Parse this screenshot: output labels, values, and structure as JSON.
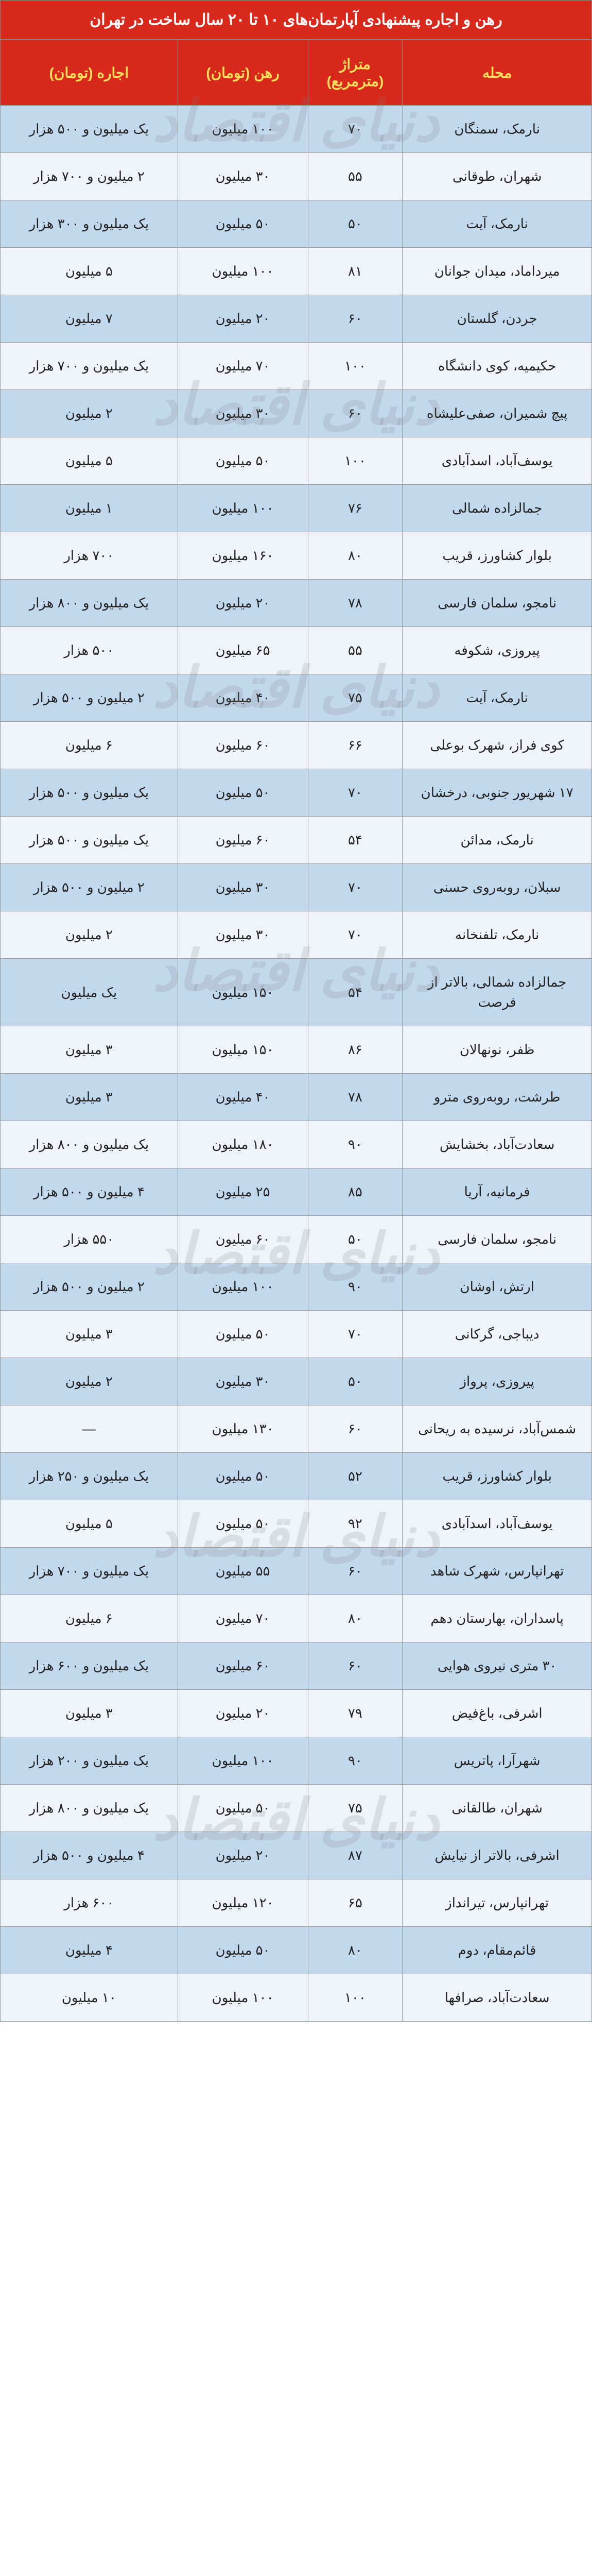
{
  "title": "رهن و اجاره پیشنهادی آپارتمان‌های ۱۰ تا ۲۰ سال ساخت در تهران",
  "columns": {
    "neighborhood": "محله",
    "area": "متراژ (مترمربع)",
    "deposit": "رهن (تومان)",
    "rent": "اجاره (تومان)"
  },
  "watermark_text": "دنیای اقتصاد",
  "watermark_positions_pct": [
    6,
    20,
    34,
    48,
    62,
    76,
    90
  ],
  "colors": {
    "header_bg": "#d9291c",
    "header_title_text": "#ffffff",
    "header_col_text": "#fde05a",
    "row_odd": "#c2d8ed",
    "row_even": "#eef4fa",
    "border": "#999999",
    "body_text": "#222222"
  },
  "rows": [
    {
      "neighborhood": "نارمک، سمنگان",
      "area": "۷۰",
      "deposit": "۱۰۰ میلیون",
      "rent": "یک میلیون و ۵۰۰ هزار"
    },
    {
      "neighborhood": "شهران، طوقانی",
      "area": "۵۵",
      "deposit": "۳۰ میلیون",
      "rent": "۲ میلیون و ۷۰۰ هزار"
    },
    {
      "neighborhood": "نارمک، آیت",
      "area": "۵۰",
      "deposit": "۵۰ میلیون",
      "rent": "یک میلیون و ۳۰۰ هزار"
    },
    {
      "neighborhood": "میرداماد، میدان جوانان",
      "area": "۸۱",
      "deposit": "۱۰۰ میلیون",
      "rent": "۵ میلیون"
    },
    {
      "neighborhood": "جردن، گلستان",
      "area": "۶۰",
      "deposit": "۲۰ میلیون",
      "rent": "۷ میلیون"
    },
    {
      "neighborhood": "حکیمیه، کوی دانشگاه",
      "area": "۱۰۰",
      "deposit": "۷۰ میلیون",
      "rent": "یک میلیون و ۷۰۰ هزار"
    },
    {
      "neighborhood": "پیچ شمیران، صفی‌علیشاه",
      "area": "۶۰",
      "deposit": "۳۰ میلیون",
      "rent": "۲ میلیون"
    },
    {
      "neighborhood": "یوسف‌آباد، اسدآبادی",
      "area": "۱۰۰",
      "deposit": "۵۰ میلیون",
      "rent": "۵ میلیون"
    },
    {
      "neighborhood": "جمالزاده شمالی",
      "area": "۷۶",
      "deposit": "۱۰۰ میلیون",
      "rent": "۱ میلیون"
    },
    {
      "neighborhood": "بلوار کشاورز، قریب",
      "area": "۸۰",
      "deposit": "۱۶۰ میلیون",
      "rent": "۷۰۰ هزار"
    },
    {
      "neighborhood": "نامجو، سلمان فارسی",
      "area": "۷۸",
      "deposit": "۲۰ میلیون",
      "rent": "یک میلیون و ۸۰۰ هزار"
    },
    {
      "neighborhood": "پیروزی، شکوفه",
      "area": "۵۵",
      "deposit": "۶۵ میلیون",
      "rent": "۵۰۰ هزار"
    },
    {
      "neighborhood": "نارمک، آیت",
      "area": "۷۵",
      "deposit": "۴۰ میلیون",
      "rent": "۲ میلیون و ۵۰۰ هزار"
    },
    {
      "neighborhood": "کوی فراز، شهرک بوعلی",
      "area": "۶۶",
      "deposit": "۶۰ میلیون",
      "rent": "۶ میلیون"
    },
    {
      "neighborhood": "۱۷ شهریور جنوبی، درخشان",
      "area": "۷۰",
      "deposit": "۵۰ میلیون",
      "rent": "یک میلیون و ۵۰۰ هزار"
    },
    {
      "neighborhood": "نارمک، مدائن",
      "area": "۵۴",
      "deposit": "۶۰ میلیون",
      "rent": "یک میلیون و ۵۰۰ هزار"
    },
    {
      "neighborhood": "سبلان، روبه‌روی حسنی",
      "area": "۷۰",
      "deposit": "۳۰ میلیون",
      "rent": "۲ میلیون و ۵۰۰ هزار"
    },
    {
      "neighborhood": "نارمک، تلفنخانه",
      "area": "۷۰",
      "deposit": "۳۰ میلیون",
      "rent": "۲ میلیون"
    },
    {
      "neighborhood": "جمالزاده شمالی، بالاتر از فرصت",
      "area": "۵۴",
      "deposit": "۱۵۰ میلیون",
      "rent": "یک میلیون"
    },
    {
      "neighborhood": "ظفر، نونهالان",
      "area": "۸۶",
      "deposit": "۱۵۰ میلیون",
      "rent": "۳ میلیون"
    },
    {
      "neighborhood": "طرشت، روبه‌روی مترو",
      "area": "۷۸",
      "deposit": "۴۰ میلیون",
      "rent": "۳ میلیون"
    },
    {
      "neighborhood": "سعادت‌آباد، بخشایش",
      "area": "۹۰",
      "deposit": "۱۸۰ میلیون",
      "rent": "یک میلیون و ۸۰۰ هزار"
    },
    {
      "neighborhood": "فرمانیه، آریا",
      "area": "۸۵",
      "deposit": "۲۵ میلیون",
      "rent": "۴ میلیون و ۵۰۰ هزار"
    },
    {
      "neighborhood": "نامجو، سلمان فارسی",
      "area": "۵۰",
      "deposit": "۶۰ میلیون",
      "rent": "۵۵۰ هزار"
    },
    {
      "neighborhood": "ارتش، اوشان",
      "area": "۹۰",
      "deposit": "۱۰۰ میلیون",
      "rent": "۲ میلیون و ۵۰۰ هزار"
    },
    {
      "neighborhood": "دیباجی، گرکانی",
      "area": "۷۰",
      "deposit": "۵۰ میلیون",
      "rent": "۳ میلیون"
    },
    {
      "neighborhood": "پیروزی، پرواز",
      "area": "۵۰",
      "deposit": "۳۰ میلیون",
      "rent": "۲ میلیون"
    },
    {
      "neighborhood": "شمس‌آباد، نرسیده به ریحانی",
      "area": "۶۰",
      "deposit": "۱۳۰ میلیون",
      "rent": "—"
    },
    {
      "neighborhood": "بلوار کشاورز، قریب",
      "area": "۵۲",
      "deposit": "۵۰ میلیون",
      "rent": "یک میلیون و ۲۵۰ هزار"
    },
    {
      "neighborhood": "یوسف‌آباد، اسدآبادی",
      "area": "۹۲",
      "deposit": "۵۰ میلیون",
      "rent": "۵ میلیون"
    },
    {
      "neighborhood": "تهرانپارس، شهرک شاهد",
      "area": "۶۰",
      "deposit": "۵۵ میلیون",
      "rent": "یک میلیون و ۷۰۰ هزار"
    },
    {
      "neighborhood": "پاسداران، بهارستان دهم",
      "area": "۸۰",
      "deposit": "۷۰ میلیون",
      "rent": "۶ میلیون"
    },
    {
      "neighborhood": "۳۰ متری نیروی هوایی",
      "area": "۶۰",
      "deposit": "۶۰ میلیون",
      "rent": "یک میلیون و ۶۰۰ هزار"
    },
    {
      "neighborhood": "اشرفی، باغ‌فیض",
      "area": "۷۹",
      "deposit": "۲۰ میلیون",
      "rent": "۳ میلیون"
    },
    {
      "neighborhood": "شهرآرا، پاتریس",
      "area": "۹۰",
      "deposit": "۱۰۰ میلیون",
      "rent": "یک میلیون و ۲۰۰ هزار"
    },
    {
      "neighborhood": "شهران، طالقانی",
      "area": "۷۵",
      "deposit": "۵۰ میلیون",
      "rent": "یک میلیون و ۸۰۰ هزار"
    },
    {
      "neighborhood": "اشرفی، بالاتر از نیایش",
      "area": "۸۷",
      "deposit": "۲۰ میلیون",
      "rent": "۴ میلیون و ۵۰۰ هزار"
    },
    {
      "neighborhood": "تهرانپارس، تیرانداز",
      "area": "۶۵",
      "deposit": "۱۲۰ میلیون",
      "rent": "۶۰۰ هزار"
    },
    {
      "neighborhood": "قائم‌مقام، دوم",
      "area": "۸۰",
      "deposit": "۵۰ میلیون",
      "rent": "۴ میلیون"
    },
    {
      "neighborhood": "سعادت‌آباد، صرافها",
      "area": "۱۰۰",
      "deposit": "۱۰۰ میلیون",
      "rent": "۱۰ میلیون"
    }
  ]
}
